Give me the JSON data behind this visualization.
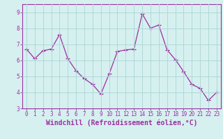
{
  "x": [
    0,
    1,
    2,
    3,
    4,
    5,
    6,
    7,
    8,
    9,
    10,
    11,
    12,
    13,
    14,
    15,
    16,
    17,
    18,
    19,
    20,
    21,
    22,
    23
  ],
  "y": [
    6.7,
    6.1,
    6.6,
    6.7,
    7.6,
    6.1,
    5.35,
    4.85,
    4.5,
    3.9,
    5.15,
    6.55,
    6.65,
    6.7,
    8.9,
    8.0,
    8.2,
    6.65,
    6.05,
    5.3,
    4.5,
    4.25,
    3.5,
    4.0
  ],
  "line_color": "#9b30a0",
  "marker": "+",
  "marker_size": 4,
  "bg_color": "#d6f0f0",
  "grid_color": "#b0d8d8",
  "axis_color": "#9b30a0",
  "xlabel": "Windchill (Refroidissement éolien,°C)",
  "xlim": [
    -0.5,
    23.5
  ],
  "ylim": [
    3,
    9.5
  ],
  "yticks": [
    3,
    4,
    5,
    6,
    7,
    8,
    9
  ],
  "xticks": [
    0,
    1,
    2,
    3,
    4,
    5,
    6,
    7,
    8,
    9,
    10,
    11,
    12,
    13,
    14,
    15,
    16,
    17,
    18,
    19,
    20,
    21,
    22,
    23
  ],
  "tick_fontsize": 5.5,
  "xlabel_fontsize": 7.0,
  "label_color": "#9b30a0"
}
